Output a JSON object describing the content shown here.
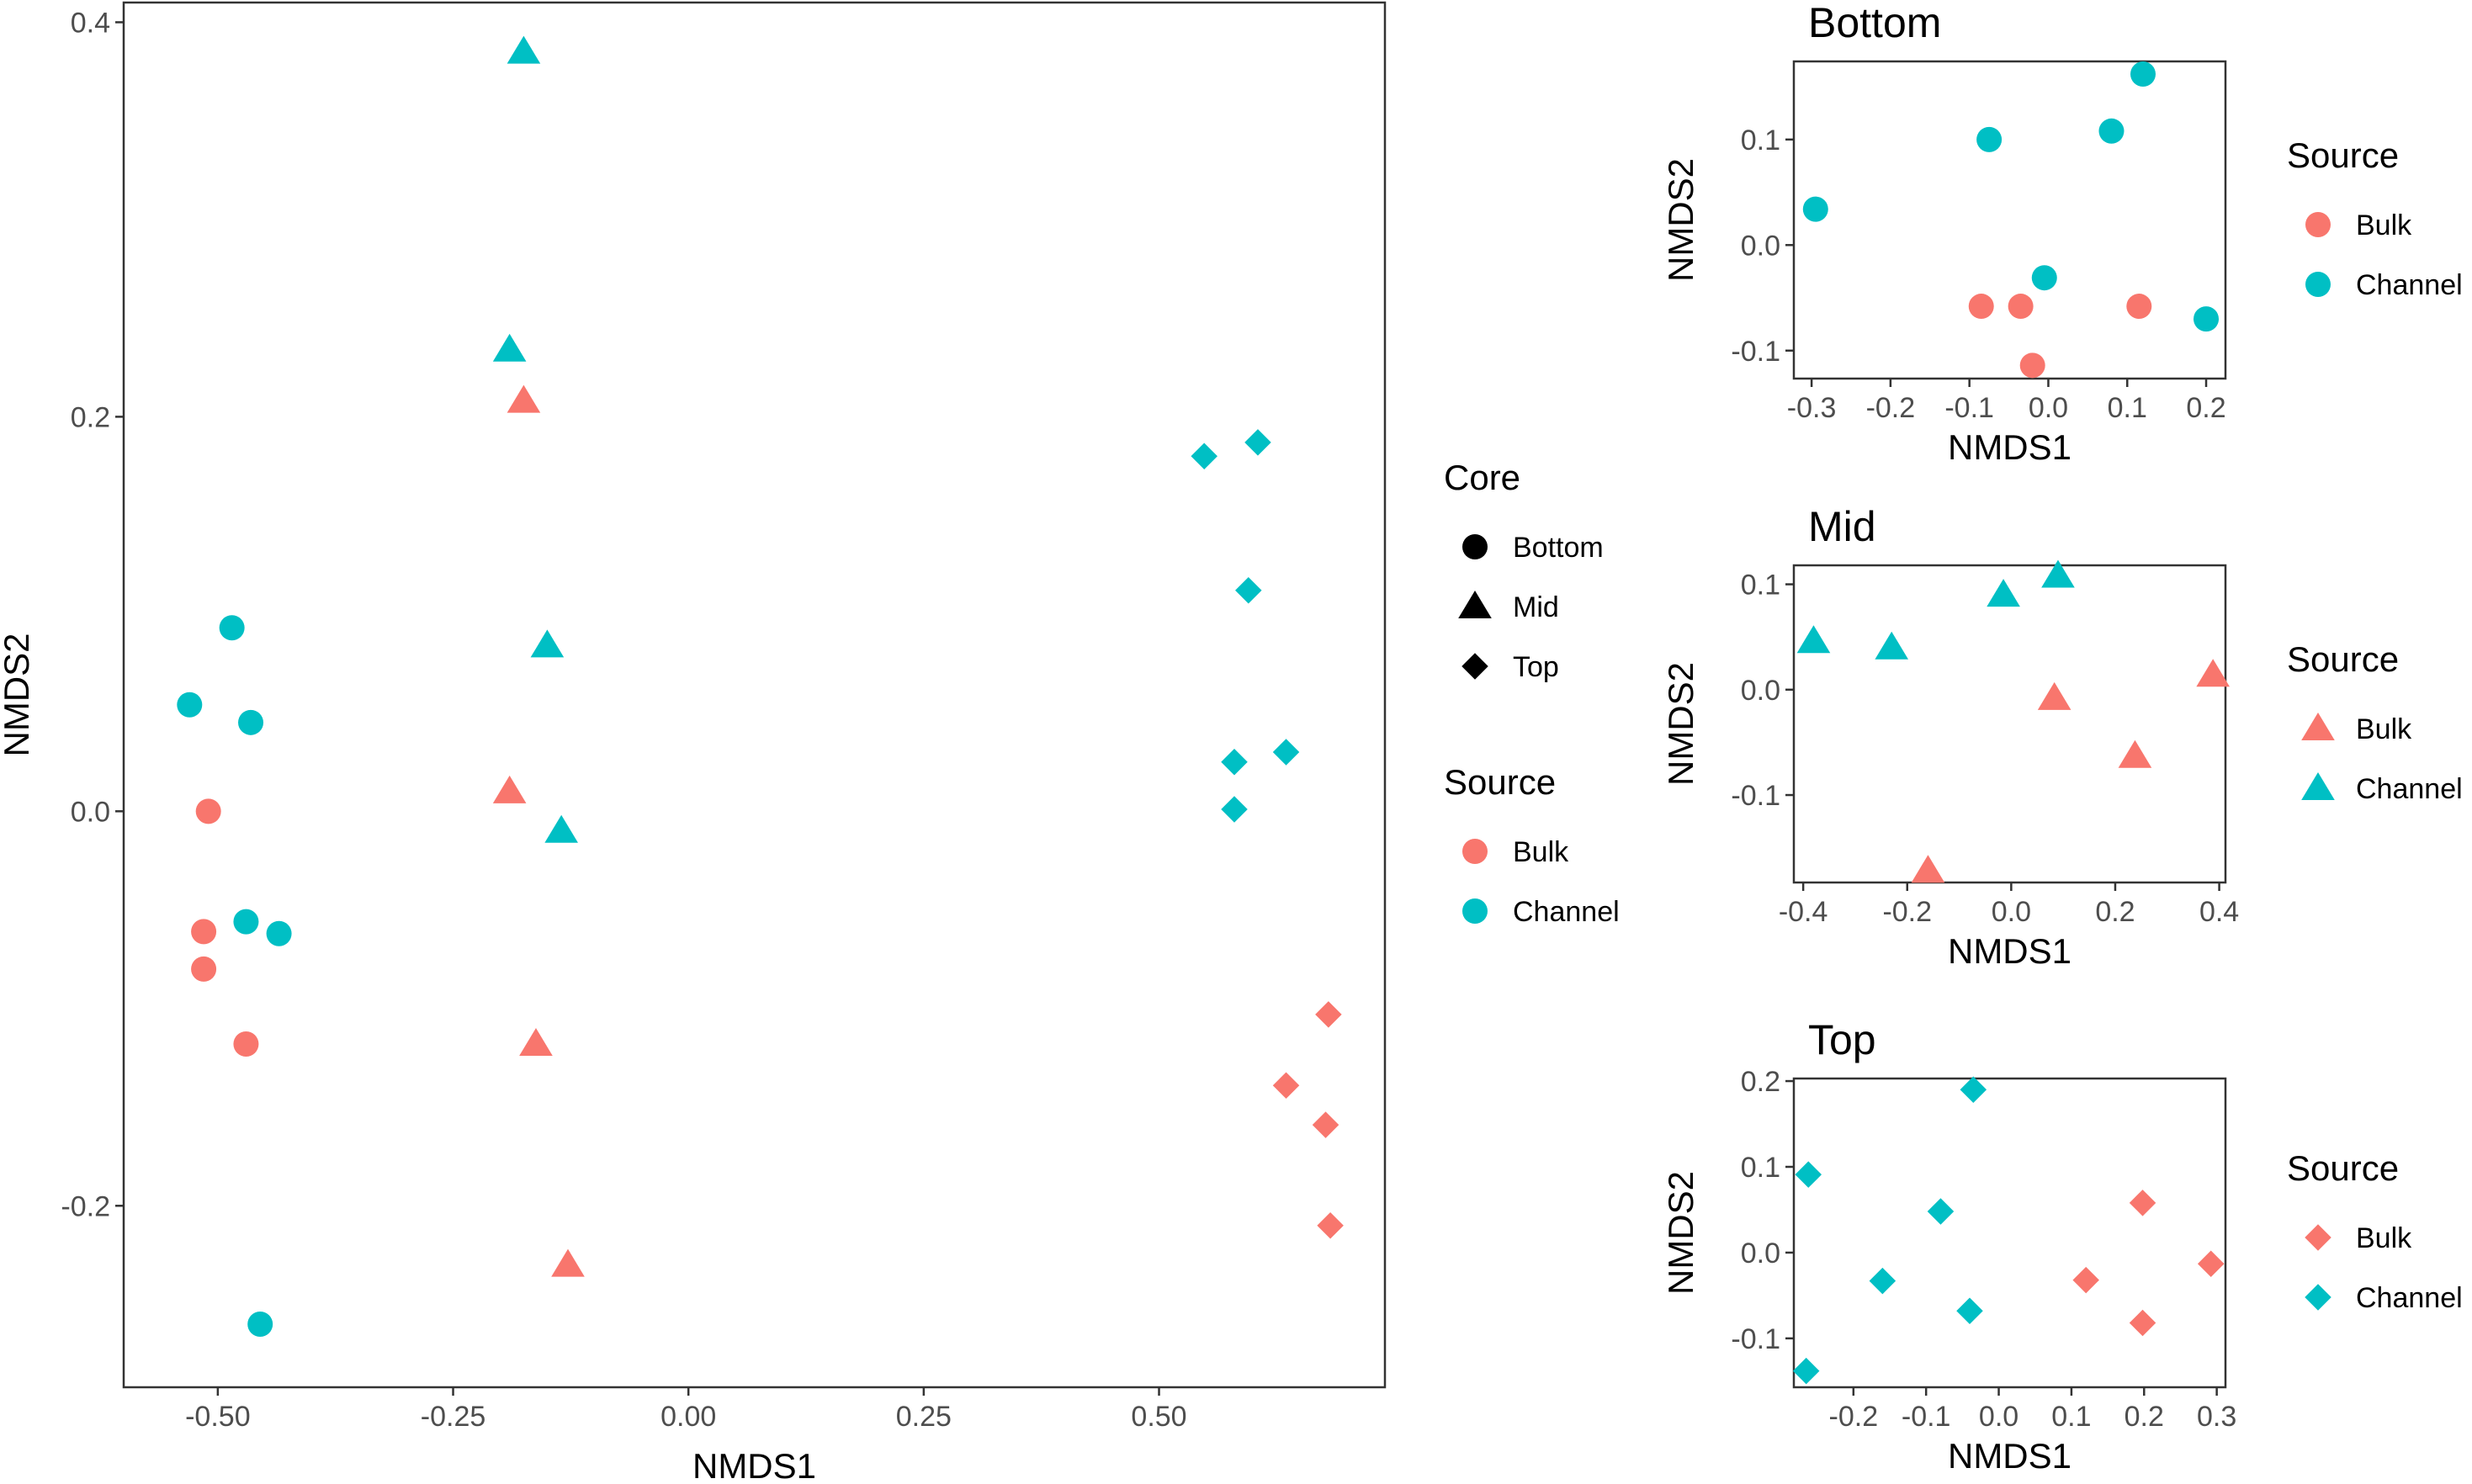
{
  "colors": {
    "bulk": "#F8766D",
    "channel": "#00BFC4",
    "key": "#000000",
    "frame": "#333333"
  },
  "legends": {
    "core": {
      "title": "Core",
      "items": [
        {
          "label": "Bottom",
          "shape": "circle"
        },
        {
          "label": "Mid",
          "shape": "triangle"
        },
        {
          "label": "Top",
          "shape": "diamond"
        }
      ]
    },
    "source": {
      "title": "Source",
      "items": [
        {
          "label": "Bulk",
          "color": "#F8766D"
        },
        {
          "label": "Channel",
          "color": "#00BFC4"
        }
      ]
    }
  },
  "chart_data": [
    {
      "id": "main",
      "type": "scatter",
      "title": "",
      "xlabel": "NMDS1",
      "ylabel": "NMDS2",
      "xlim": [
        -0.6,
        0.74
      ],
      "ylim": [
        -0.292,
        0.41
      ],
      "xticks": [
        -0.5,
        -0.25,
        0,
        0.25,
        0.5
      ],
      "xtick_labels": [
        "-0.50",
        "-0.25",
        "0.00",
        "0.25",
        "0.50"
      ],
      "yticks": [
        -0.2,
        0,
        0.2,
        0.4
      ],
      "ytick_labels": [
        "-0.2",
        "0.0",
        "0.2",
        "0.4"
      ],
      "legend": [
        "core",
        "source"
      ],
      "series": [
        {
          "name": "Bulk",
          "color": "#F8766D",
          "points": [
            {
              "x": -0.51,
              "y": 0.0,
              "shape": "circle"
            },
            {
              "x": -0.515,
              "y": -0.061,
              "shape": "circle"
            },
            {
              "x": -0.515,
              "y": -0.08,
              "shape": "circle"
            },
            {
              "x": -0.47,
              "y": -0.118,
              "shape": "circle"
            },
            {
              "x": -0.175,
              "y": 0.208,
              "shape": "triangle"
            },
            {
              "x": -0.19,
              "y": 0.01,
              "shape": "triangle"
            },
            {
              "x": -0.162,
              "y": -0.118,
              "shape": "triangle"
            },
            {
              "x": -0.128,
              "y": -0.23,
              "shape": "triangle"
            },
            {
              "x": 0.68,
              "y": -0.103,
              "shape": "diamond"
            },
            {
              "x": 0.635,
              "y": -0.139,
              "shape": "diamond"
            },
            {
              "x": 0.677,
              "y": -0.159,
              "shape": "diamond"
            },
            {
              "x": 0.682,
              "y": -0.21,
              "shape": "diamond"
            }
          ]
        },
        {
          "name": "Channel",
          "color": "#00BFC4",
          "points": [
            {
              "x": -0.485,
              "y": 0.093,
              "shape": "circle"
            },
            {
              "x": -0.53,
              "y": 0.054,
              "shape": "circle"
            },
            {
              "x": -0.465,
              "y": 0.045,
              "shape": "circle"
            },
            {
              "x": -0.47,
              "y": -0.056,
              "shape": "circle"
            },
            {
              "x": -0.435,
              "y": -0.062,
              "shape": "circle"
            },
            {
              "x": -0.455,
              "y": -0.26,
              "shape": "circle"
            },
            {
              "x": -0.175,
              "y": 0.385,
              "shape": "triangle"
            },
            {
              "x": -0.19,
              "y": 0.234,
              "shape": "triangle"
            },
            {
              "x": -0.15,
              "y": 0.084,
              "shape": "triangle"
            },
            {
              "x": -0.135,
              "y": -0.01,
              "shape": "triangle"
            },
            {
              "x": 0.548,
              "y": 0.18,
              "shape": "diamond"
            },
            {
              "x": 0.605,
              "y": 0.187,
              "shape": "diamond"
            },
            {
              "x": 0.595,
              "y": 0.112,
              "shape": "diamond"
            },
            {
              "x": 0.58,
              "y": 0.025,
              "shape": "diamond"
            },
            {
              "x": 0.635,
              "y": 0.03,
              "shape": "diamond"
            },
            {
              "x": 0.58,
              "y": 0.001,
              "shape": "diamond"
            }
          ]
        }
      ]
    },
    {
      "id": "bottom",
      "type": "scatter",
      "title": "Bottom",
      "xlabel": "NMDS1",
      "ylabel": "NMDS2",
      "xlim": [
        -0.3225,
        0.2245
      ],
      "ylim": [
        -0.1265,
        0.174
      ],
      "xticks": [
        -0.3,
        -0.2,
        -0.1,
        0,
        0.1,
        0.2
      ],
      "xtick_labels": [
        "-0.3",
        "-0.2",
        "-0.1",
        "0.0",
        "0.1",
        "0.2"
      ],
      "yticks": [
        -0.1,
        0,
        0.1
      ],
      "ytick_labels": [
        "-0.1",
        "0.0",
        "0.1"
      ],
      "legend": "source",
      "series": [
        {
          "name": "Bulk",
          "color": "#F8766D",
          "points": [
            {
              "x": -0.085,
              "y": -0.058,
              "shape": "circle"
            },
            {
              "x": -0.035,
              "y": -0.058,
              "shape": "circle"
            },
            {
              "x": -0.02,
              "y": -0.114,
              "shape": "circle"
            },
            {
              "x": 0.115,
              "y": -0.058,
              "shape": "circle"
            }
          ]
        },
        {
          "name": "Channel",
          "color": "#00BFC4",
          "points": [
            {
              "x": -0.295,
              "y": 0.034,
              "shape": "circle"
            },
            {
              "x": -0.075,
              "y": 0.1,
              "shape": "circle"
            },
            {
              "x": -0.005,
              "y": -0.031,
              "shape": "circle"
            },
            {
              "x": 0.08,
              "y": 0.108,
              "shape": "circle"
            },
            {
              "x": 0.12,
              "y": 0.162,
              "shape": "circle"
            },
            {
              "x": 0.2,
              "y": -0.07,
              "shape": "circle"
            }
          ]
        }
      ]
    },
    {
      "id": "mid",
      "type": "scatter",
      "title": "Mid",
      "xlabel": "NMDS1",
      "ylabel": "NMDS2",
      "xlim": [
        -0.418,
        0.412
      ],
      "ylim": [
        -0.183,
        0.118
      ],
      "xticks": [
        -0.4,
        -0.2,
        0,
        0.2,
        0.4
      ],
      "xtick_labels": [
        "-0.4",
        "-0.2",
        "0.0",
        "0.2",
        "0.4"
      ],
      "yticks": [
        -0.1,
        0,
        0.1
      ],
      "ytick_labels": [
        "-0.1",
        "0.0",
        "0.1"
      ],
      "legend": "source",
      "series": [
        {
          "name": "Bulk",
          "color": "#F8766D",
          "points": [
            {
              "x": 0.083,
              "y": -0.008,
              "shape": "triangle"
            },
            {
              "x": 0.388,
              "y": 0.014,
              "shape": "triangle"
            },
            {
              "x": 0.238,
              "y": -0.063,
              "shape": "triangle"
            },
            {
              "x": -0.16,
              "y": -0.172,
              "shape": "triangle"
            }
          ]
        },
        {
          "name": "Channel",
          "color": "#00BFC4",
          "points": [
            {
              "x": -0.38,
              "y": 0.046,
              "shape": "triangle"
            },
            {
              "x": -0.23,
              "y": 0.04,
              "shape": "triangle"
            },
            {
              "x": -0.015,
              "y": 0.09,
              "shape": "triangle"
            },
            {
              "x": 0.09,
              "y": 0.108,
              "shape": "triangle"
            }
          ]
        }
      ]
    },
    {
      "id": "top",
      "type": "scatter",
      "title": "Top",
      "xlabel": "NMDS1",
      "ylabel": "NMDS2",
      "xlim": [
        -0.282,
        0.312
      ],
      "ylim": [
        -0.157,
        0.203
      ],
      "xticks": [
        -0.2,
        -0.1,
        0,
        0.1,
        0.2,
        0.3
      ],
      "xtick_labels": [
        "-0.2",
        "-0.1",
        "0.0",
        "0.1",
        "0.2",
        "0.3"
      ],
      "yticks": [
        -0.1,
        0,
        0.1,
        0.2
      ],
      "ytick_labels": [
        "-0.1",
        "0.0",
        "0.1",
        "0.2"
      ],
      "legend": "source",
      "series": [
        {
          "name": "Bulk",
          "color": "#F8766D",
          "points": [
            {
              "x": 0.12,
              "y": -0.032,
              "shape": "diamond"
            },
            {
              "x": 0.198,
              "y": 0.058,
              "shape": "diamond"
            },
            {
              "x": 0.198,
              "y": -0.082,
              "shape": "diamond"
            },
            {
              "x": 0.292,
              "y": -0.013,
              "shape": "diamond"
            }
          ]
        },
        {
          "name": "Channel",
          "color": "#00BFC4",
          "points": [
            {
              "x": -0.262,
              "y": 0.091,
              "shape": "diamond"
            },
            {
              "x": -0.16,
              "y": -0.033,
              "shape": "diamond"
            },
            {
              "x": -0.08,
              "y": 0.048,
              "shape": "diamond"
            },
            {
              "x": -0.035,
              "y": 0.19,
              "shape": "diamond"
            },
            {
              "x": -0.04,
              "y": -0.068,
              "shape": "diamond"
            },
            {
              "x": -0.265,
              "y": -0.138,
              "shape": "diamond"
            }
          ]
        }
      ]
    }
  ]
}
